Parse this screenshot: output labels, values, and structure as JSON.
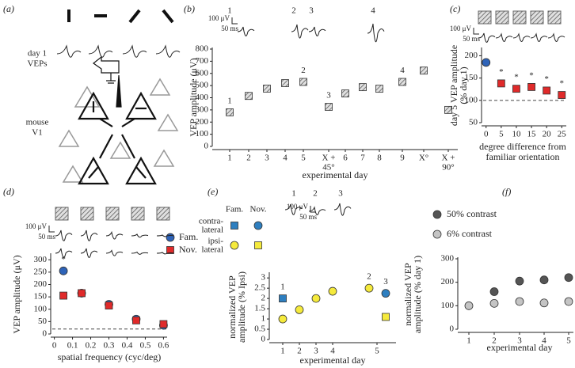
{
  "diagram": {
    "panel": "(a)",
    "top_label": [
      "day 1",
      "VEPs"
    ],
    "side_label": [
      "mouse",
      "V1"
    ]
  },
  "chart_data": [
    {
      "type": "dot",
      "panel": "(b)",
      "ylabel": [
        "VEP amplitude (μV)"
      ],
      "xlabel": [
        "experimental day"
      ],
      "categories": [
        "1",
        "2",
        "3",
        "4",
        "5",
        [
          "X +",
          "45°"
        ],
        "6",
        "7",
        "8",
        "9",
        "X°",
        [
          "X +",
          "90°"
        ]
      ],
      "series": [
        {
          "color": "#a8a8a8",
          "marker": "square",
          "values": [
            280,
            415,
            475,
            520,
            530,
            325,
            435,
            487,
            474,
            530,
            623,
            300
          ],
          "notes": [
            "1",
            null,
            null,
            null,
            "2",
            "3",
            null,
            null,
            null,
            "4",
            null,
            null
          ]
        }
      ],
      "ylim": [
        0,
        800
      ],
      "yticks": [
        0,
        100,
        200,
        300,
        400,
        500,
        600,
        700,
        800
      ],
      "trace_labels": [
        "1",
        "2",
        "3",
        "4"
      ],
      "scale_bar": [
        "100 μV",
        "50 ms"
      ]
    },
    {
      "type": "scatter",
      "panel": "(c)",
      "ylabel": [
        "day 5 VEP amplitude",
        "(% day 1)"
      ],
      "xlabel": [
        "degree difference from",
        "familiar orientation"
      ],
      "x": [
        0,
        5,
        10,
        15,
        20,
        25
      ],
      "series": [
        {
          "color": "#2e63b8",
          "marker": "circle",
          "values": [
            185,
            null,
            null,
            null,
            null,
            null
          ],
          "notes": [
            null,
            null,
            null,
            null,
            null,
            null
          ]
        },
        {
          "color": "#e02a2a",
          "marker": "square",
          "values": [
            null,
            138,
            126,
            130,
            122,
            112
          ],
          "notes": [
            null,
            "*",
            "*",
            "*",
            "*",
            "*"
          ]
        }
      ],
      "xlim": [
        -1.5,
        26.5
      ],
      "xticks": [
        0,
        5,
        10,
        15,
        20,
        25
      ],
      "ylim": [
        50,
        215
      ],
      "yticks": [
        50,
        100,
        150,
        200
      ],
      "ref_line": 100,
      "scale_bar": [
        "100 μV",
        "50 ms"
      ]
    },
    {
      "type": "scatter",
      "panel": "(d)",
      "ylabel": [
        "VEP amplitude (μV)"
      ],
      "xlabel": [
        "spatial frequency (cyc/deg)"
      ],
      "x": [
        0.05,
        0.15,
        0.3,
        0.45,
        0.6
      ],
      "series": [
        {
          "name": "Fam.",
          "color": "#2e63b8",
          "marker": "circle",
          "values": [
            255,
            165,
            120,
            60,
            35
          ],
          "notes": [
            "*",
            null,
            null,
            null,
            null
          ]
        },
        {
          "name": "Nov.",
          "color": "#e02a2a",
          "marker": "square",
          "values": [
            155,
            165,
            115,
            55,
            40
          ],
          "notes": [
            null,
            null,
            null,
            null,
            null
          ]
        }
      ],
      "xlim": [
        -0.02,
        0.62
      ],
      "xticks": [
        0,
        0.1,
        0.2,
        0.3,
        0.4,
        0.5,
        0.6
      ],
      "ylim": [
        0,
        320
      ],
      "yticks": [
        0,
        50,
        100,
        150,
        200,
        250,
        300
      ],
      "ref_line": 20,
      "scale_bar": [
        "100 μV",
        "50 ms"
      ]
    },
    {
      "type": "dot",
      "panel": "(e)",
      "ylabel": [
        "normalized VEP",
        "amplitude (% Ipsi)"
      ],
      "xlabel": [
        "experimental day"
      ],
      "categories": [
        "1",
        "2",
        "3",
        "4",
        "5"
      ],
      "legend_columns": [
        "Fam.",
        "Nov."
      ],
      "legend_rows": [
        [
          "contra-",
          "lateral"
        ],
        [
          "ipsi-",
          "lateral"
        ]
      ],
      "series": [
        {
          "color": "#2e7fc0",
          "marker": "square",
          "values": [
            2.0,
            null,
            null,
            null,
            null
          ],
          "notes": [
            "1",
            null,
            null,
            null,
            null
          ]
        },
        {
          "color": "#2e7fc0",
          "marker": "circle",
          "values": [
            null,
            null,
            null,
            null,
            2.25
          ],
          "notes": [
            null,
            null,
            null,
            null,
            "3"
          ]
        },
        {
          "color": "#f5ea3c",
          "marker": "circle",
          "values": [
            1.0,
            1.45,
            2.0,
            2.35,
            2.5
          ],
          "notes": [
            null,
            null,
            null,
            null,
            "2"
          ]
        },
        {
          "color": "#f5ea3c",
          "marker": "square",
          "values": [
            null,
            null,
            null,
            null,
            1.1
          ],
          "notes": [
            null,
            null,
            null,
            null,
            null
          ]
        }
      ],
      "ylim": [
        0,
        3.2
      ],
      "yticks": [
        0,
        0.5,
        1,
        1.5,
        2,
        2.5,
        3
      ],
      "trace_labels": [
        "1",
        "2",
        "3"
      ],
      "scale_bar": [
        "100 μV",
        "50 ms"
      ]
    },
    {
      "type": "dot",
      "panel": "(f)",
      "ylabel": [
        "normalized VEP",
        "amplitude (% day 1)"
      ],
      "xlabel": [
        "experimental day"
      ],
      "categories": [
        "1",
        "2",
        "3",
        "4",
        "5"
      ],
      "series": [
        {
          "name": "50% contrast",
          "color": "#555555",
          "marker": "circle",
          "values": [
            null,
            160,
            205,
            210,
            220
          ]
        },
        {
          "name": "6% contrast",
          "color": "#c4c4c4",
          "marker": "circle",
          "values": [
            100,
            110,
            118,
            112,
            118
          ]
        }
      ],
      "ylim": [
        0,
        300
      ],
      "yticks": [
        0,
        100,
        200,
        300
      ]
    }
  ]
}
